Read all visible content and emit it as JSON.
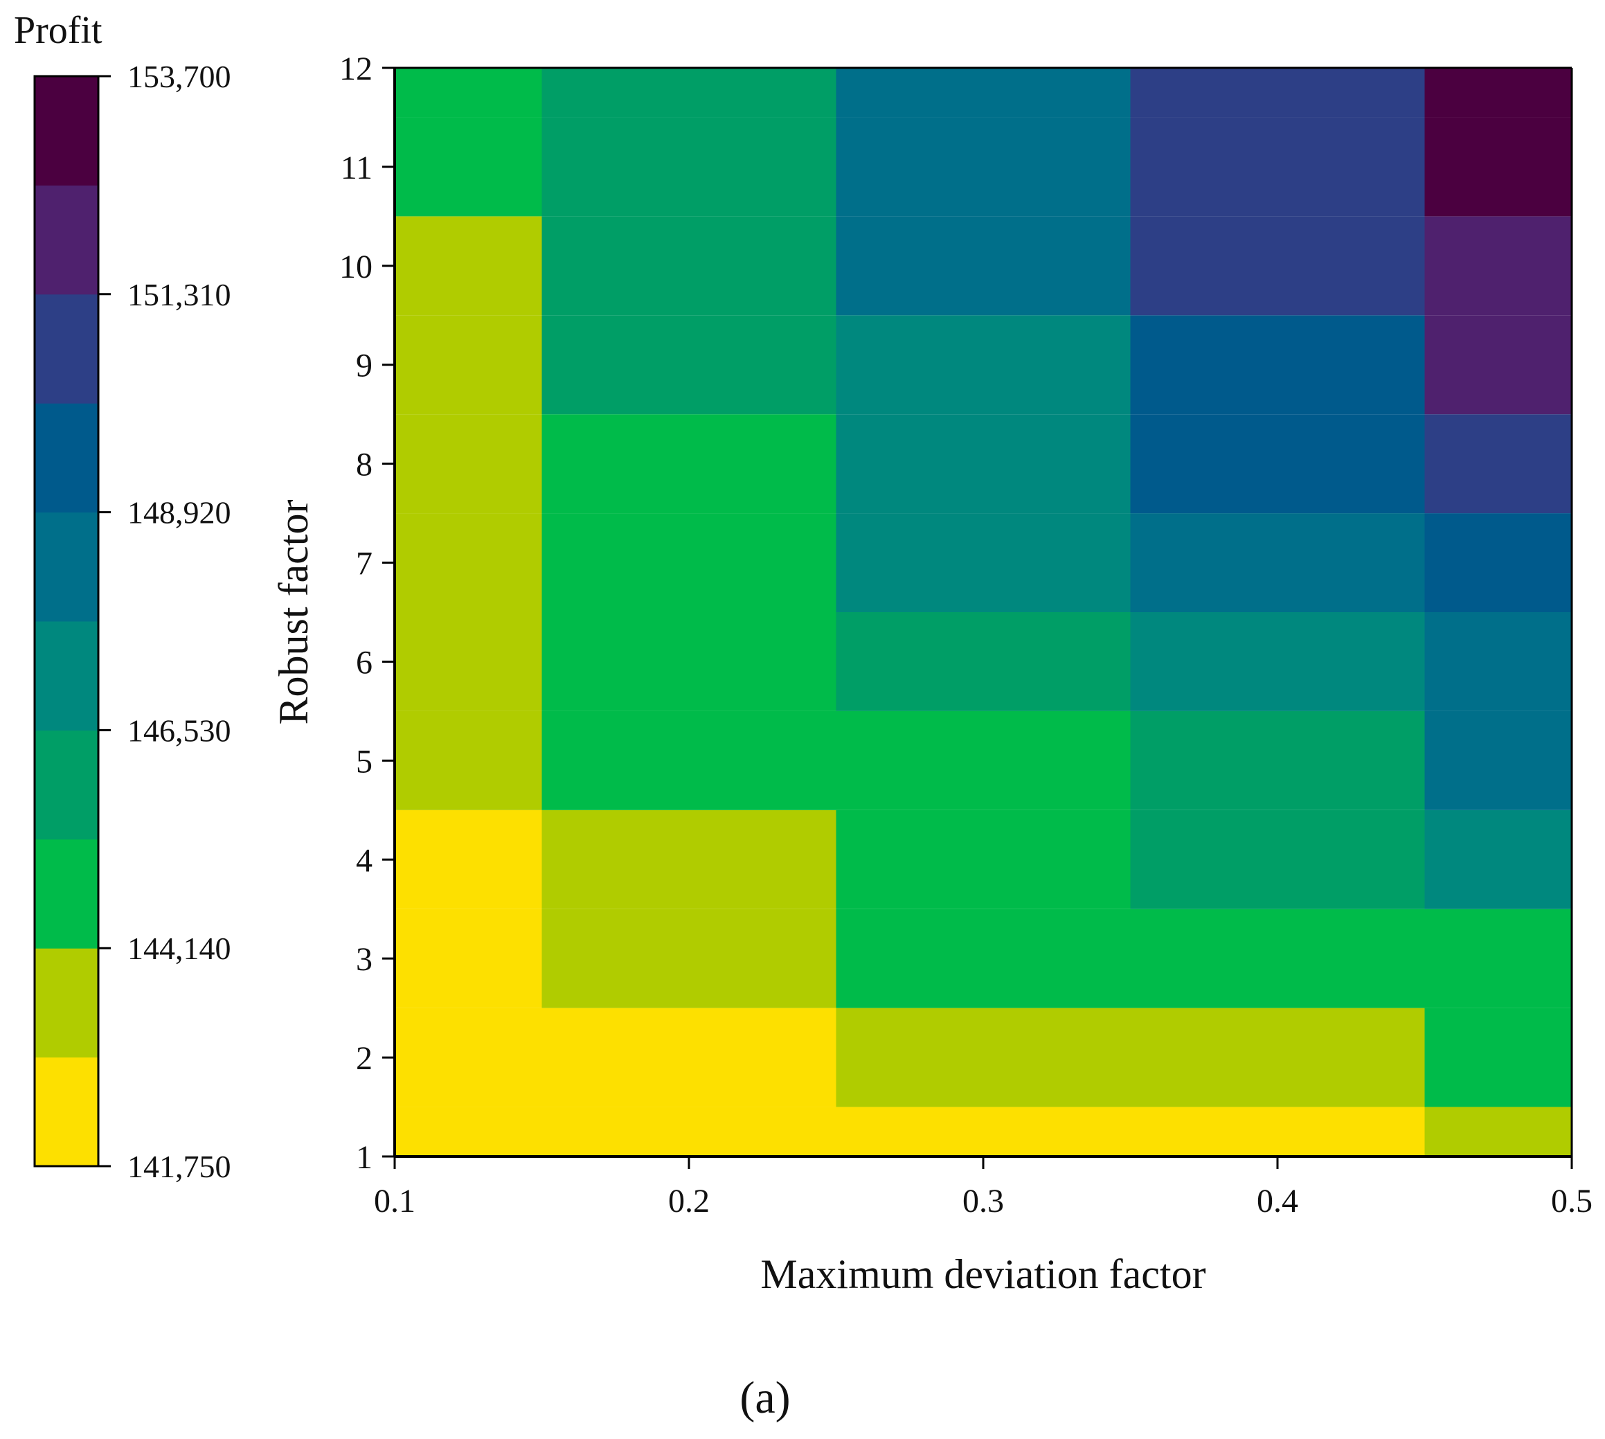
{
  "chart_data": {
    "type": "heatmap",
    "title": "",
    "xlabel": "Maximum deviation factor",
    "ylabel": "Robust factor",
    "caption": "(a)",
    "x_values": [
      0.1,
      0.2,
      0.3,
      0.4,
      0.5
    ],
    "x_tick_labels": [
      "0.1",
      "0.2",
      "0.3",
      "0.4",
      "0.5"
    ],
    "y_values": [
      1,
      2,
      3,
      4,
      5,
      6,
      7,
      8,
      9,
      10,
      11,
      12
    ],
    "y_tick_labels": [
      "1",
      "2",
      "3",
      "4",
      "5",
      "6",
      "7",
      "8",
      "9",
      "10",
      "11",
      "12"
    ],
    "xlim": [
      0.1,
      0.5
    ],
    "ylim": [
      1,
      12
    ],
    "colorbar": {
      "title": "Profit",
      "min": 141750,
      "max": 153700,
      "tick_values": [
        141750,
        144140,
        146530,
        148920,
        151310,
        153700
      ],
      "tick_labels": [
        "141,750",
        "144,140",
        "146,530",
        "148,920",
        "151,310",
        "153,700"
      ],
      "levels": 10,
      "colors": [
        "#fde000",
        "#b0cc00",
        "#00bb4a",
        "#009e66",
        "#00887e",
        "#006f8a",
        "#005a8c",
        "#2d3f86",
        "#4f216e",
        "#4b0040"
      ]
    },
    "profit_levels_note": "values are discrete contour-level indices 0-9 mapped onto the colorbar bands",
    "level_grid": [
      [
        0,
        0,
        0,
        0,
        1
      ],
      [
        0,
        0,
        1,
        1,
        2
      ],
      [
        0,
        1,
        2,
        2,
        2
      ],
      [
        0,
        1,
        2,
        3,
        4
      ],
      [
        1,
        2,
        2,
        3,
        5
      ],
      [
        1,
        2,
        3,
        4,
        5
      ],
      [
        1,
        2,
        4,
        5,
        6
      ],
      [
        1,
        2,
        4,
        6,
        7
      ],
      [
        1,
        3,
        4,
        6,
        8
      ],
      [
        1,
        3,
        5,
        7,
        8
      ],
      [
        2,
        3,
        5,
        7,
        9
      ],
      [
        2,
        3,
        5,
        7,
        9
      ]
    ]
  }
}
